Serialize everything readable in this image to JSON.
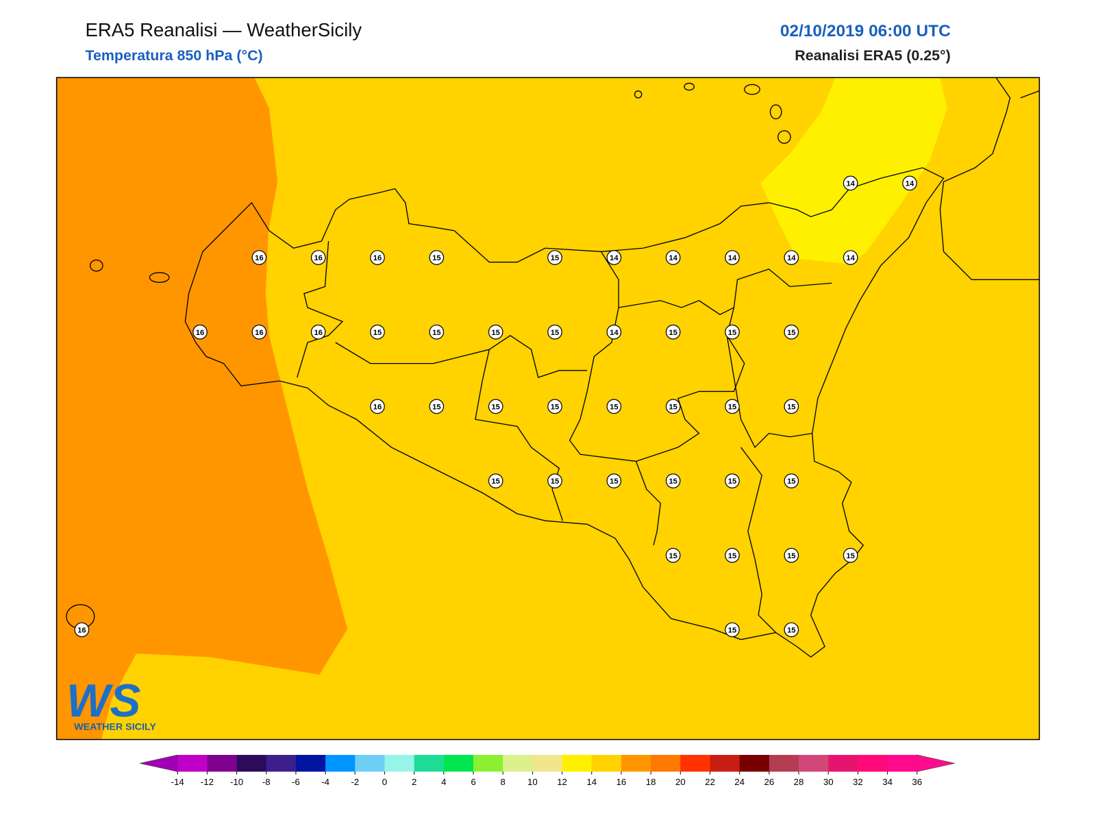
{
  "header": {
    "title": "ERA5 Reanalisi — WeatherSicily",
    "subtitle": "Temperatura 850 hPa (°C)",
    "datetime": "02/10/2019 06:00 UTC",
    "source": "Reanalisi ERA5 (0.25°)"
  },
  "stations": {
    "rows": [
      [
        null,
        null,
        null,
        null,
        null,
        null,
        null,
        null,
        null,
        null,
        null,
        null,
        null,
        14,
        14
      ],
      [
        null,
        null,
        null,
        16,
        16,
        16,
        15,
        null,
        15,
        14,
        14,
        14,
        14,
        14,
        null
      ],
      [
        null,
        null,
        16,
        16,
        16,
        15,
        15,
        15,
        15,
        14,
        15,
        15,
        15,
        null,
        null
      ],
      [
        null,
        null,
        null,
        null,
        null,
        16,
        15,
        15,
        15,
        15,
        15,
        15,
        15,
        null,
        null
      ],
      [
        null,
        null,
        null,
        null,
        null,
        null,
        null,
        15,
        15,
        15,
        15,
        15,
        15,
        null,
        null
      ],
      [
        null,
        null,
        null,
        null,
        null,
        null,
        null,
        null,
        null,
        null,
        15,
        15,
        15,
        15,
        null
      ],
      [
        16,
        null,
        null,
        null,
        null,
        null,
        null,
        null,
        null,
        null,
        null,
        15,
        15,
        null,
        null
      ]
    ]
  },
  "colorbar": {
    "ticks": [
      -14,
      -12,
      -10,
      -8,
      -6,
      -4,
      -2,
      0,
      2,
      4,
      6,
      8,
      10,
      12,
      14,
      16,
      18,
      20,
      22,
      24,
      26,
      28,
      30,
      32,
      34,
      36
    ],
    "colors": [
      "#c000c8",
      "#800090",
      "#2d0a5a",
      "#3c1e8c",
      "#0014a0",
      "#0096ff",
      "#6ecff5",
      "#96f5e6",
      "#1edc96",
      "#00e650",
      "#8cf032",
      "#dcf08c",
      "#f0e68c",
      "#fff000",
      "#ffd200",
      "#ff9600",
      "#ff7800",
      "#ff3200",
      "#c81e14",
      "#780000",
      "#b43c50",
      "#d24678",
      "#e6146e",
      "#ff0a78",
      "#ff0a8c"
    ],
    "under_color": "#a000b4",
    "over_color": "#ff0a8c"
  },
  "logo": {
    "mark": "WS",
    "text": "WEATHER SICILY"
  }
}
